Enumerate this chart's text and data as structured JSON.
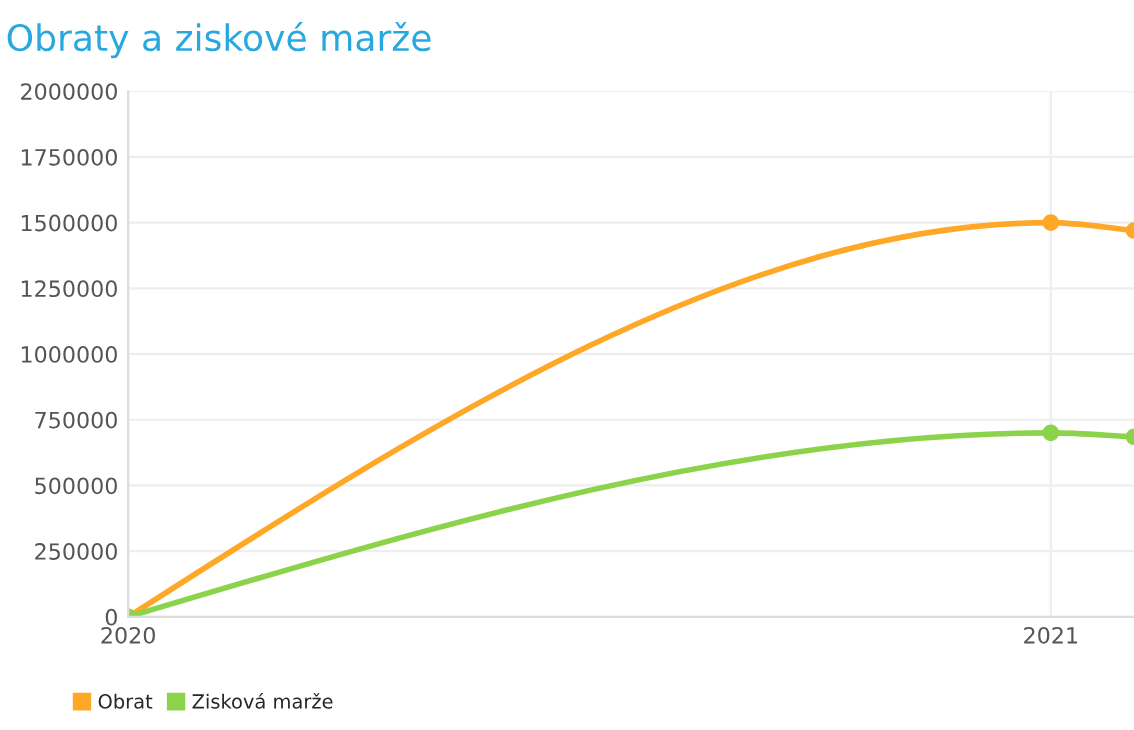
{
  "chart_data": {
    "type": "line",
    "title": "Obraty a ziskové marže",
    "x": [
      "2020",
      "2021",
      "2021-02-03"
    ],
    "series": [
      {
        "name": "Obrat",
        "color": "#ffa726",
        "values": [
          0,
          1500000,
          1470000
        ]
      },
      {
        "name": "Zisková marže",
        "color": "#8bd34a",
        "values": [
          0,
          700000,
          685000
        ]
      }
    ],
    "xlim": [
      "2020",
      "2021-02-03"
    ],
    "xticks": [
      "2020",
      "2021"
    ],
    "ylim": [
      0,
      2000000
    ],
    "yticks": [
      0,
      250000,
      500000,
      750000,
      1000000,
      1250000,
      1500000,
      1750000,
      2000000
    ],
    "grid": true,
    "legend": "bottom left",
    "marker": "circle",
    "line_style": "solid"
  }
}
